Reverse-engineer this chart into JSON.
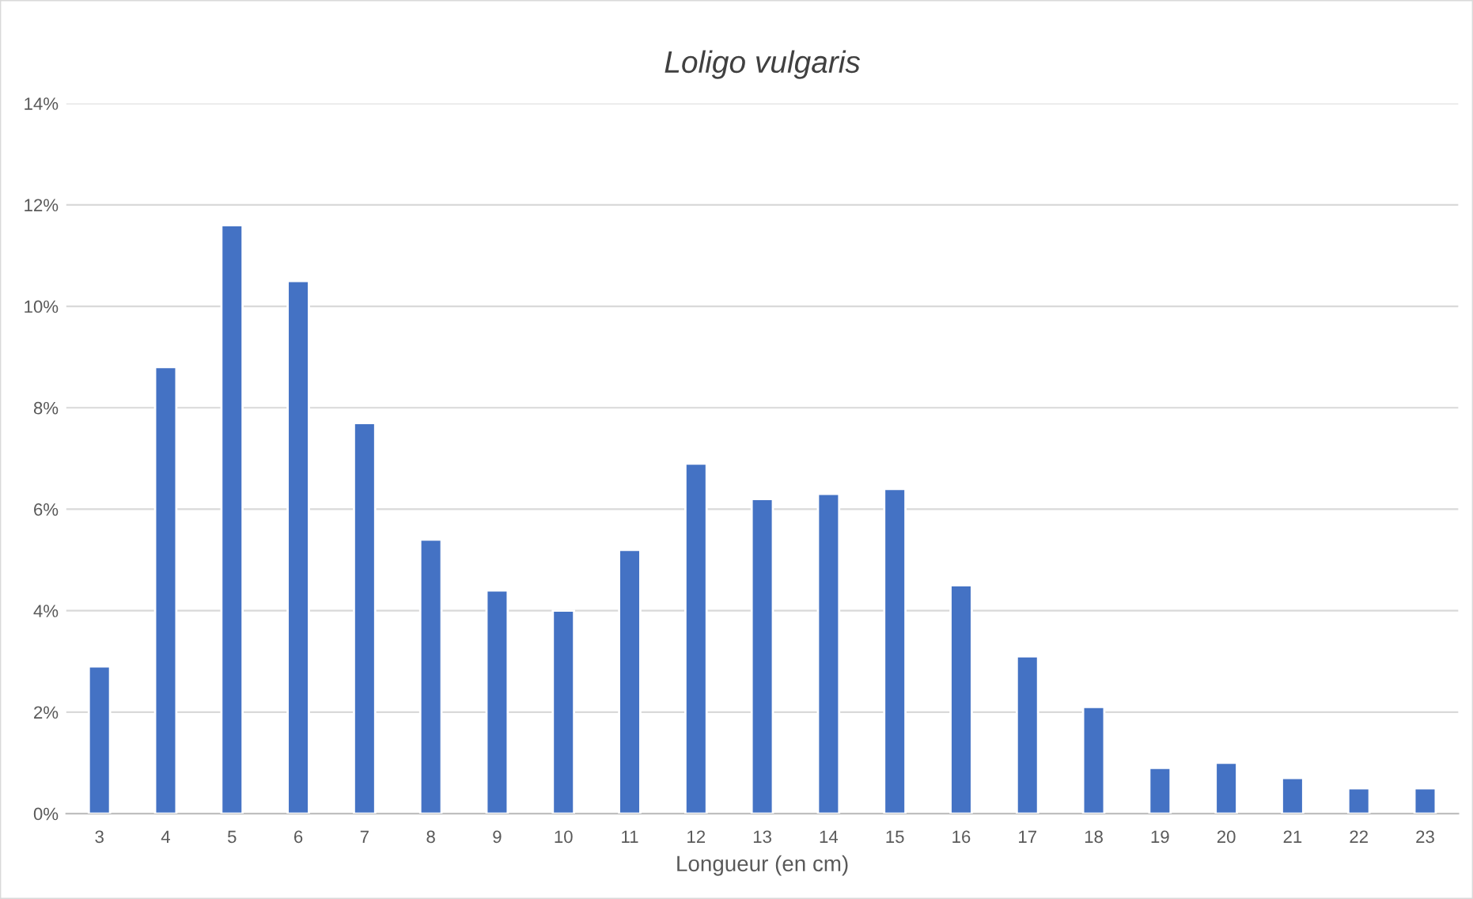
{
  "chart_data": {
    "type": "bar",
    "title": "Loligo vulgaris",
    "xlabel": "Longueur (en cm)",
    "categories": [
      "3",
      "4",
      "5",
      "6",
      "7",
      "8",
      "9",
      "10",
      "11",
      "12",
      "13",
      "14",
      "15",
      "16",
      "17",
      "18",
      "19",
      "20",
      "21",
      "22",
      "23"
    ],
    "values": [
      2.9,
      8.8,
      11.6,
      10.5,
      7.7,
      5.4,
      4.4,
      4.0,
      5.2,
      6.9,
      6.2,
      6.3,
      6.4,
      4.5,
      3.1,
      2.1,
      0.9,
      1.0,
      0.7,
      0.5,
      0.5
    ],
    "color": "#4472c4",
    "ylim": [
      0,
      14
    ],
    "yticks": [
      {
        "value": 0,
        "label": "0%"
      },
      {
        "value": 2,
        "label": "2%"
      },
      {
        "value": 4,
        "label": "4%"
      },
      {
        "value": 6,
        "label": "6%"
      },
      {
        "value": 8,
        "label": "8%"
      },
      {
        "value": 10,
        "label": "10%"
      },
      {
        "value": 12,
        "label": "12%"
      },
      {
        "value": 14,
        "label": "14%"
      }
    ],
    "grid": "y"
  }
}
